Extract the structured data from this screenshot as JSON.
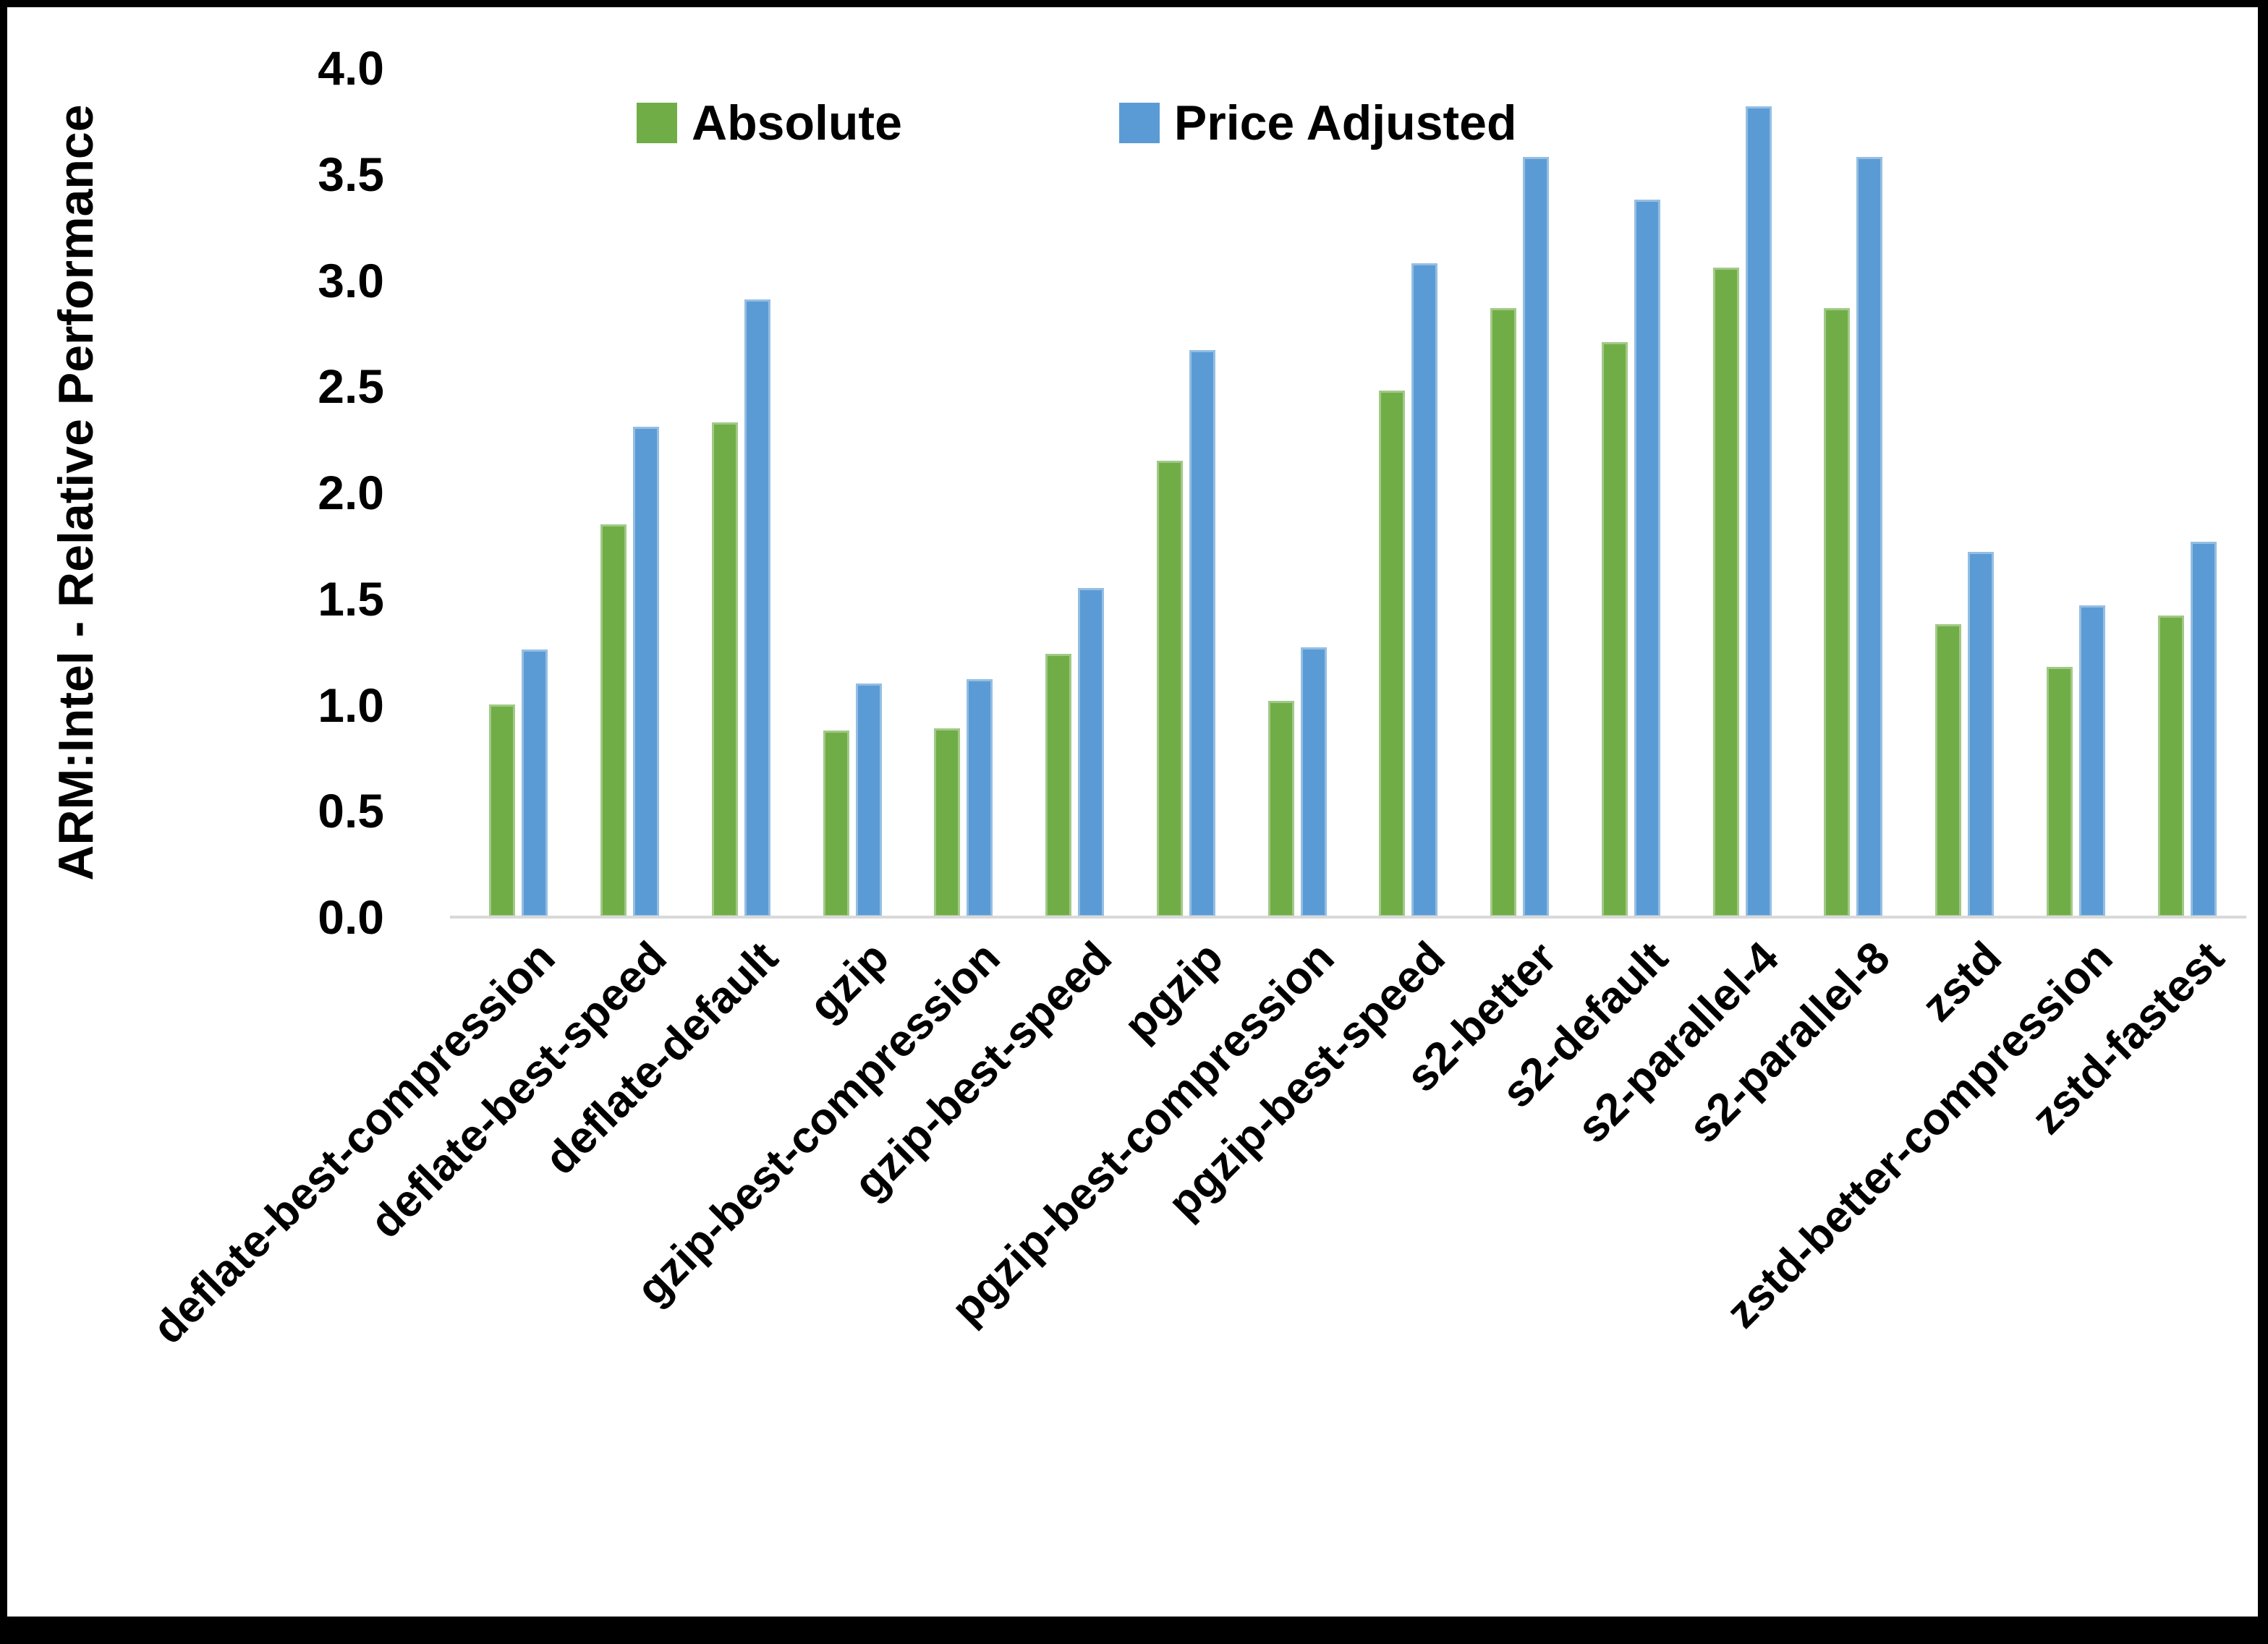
{
  "page": {
    "background": "#ffffff",
    "frame_color": "#000000"
  },
  "chart_data": {
    "type": "bar",
    "title": "",
    "ylabel": "ARM:Intel - Relative Performance",
    "xlabel": "",
    "ylim": [
      0.0,
      4.0
    ],
    "ytick_labels": [
      "0.0",
      "0.5",
      "1.0",
      "1.5",
      "2.0",
      "2.5",
      "3.0",
      "3.5",
      "4.0"
    ],
    "grid": false,
    "legend_position": "top-center",
    "axis_line_color": "#d9d9d9",
    "text_color": "#000000",
    "categories": [
      "deflate-best-compression",
      "deflate-best-speed",
      "deflate-default",
      "gzip",
      "gzip-best-compression",
      "gzip-best-speed",
      "pgzip",
      "pgzip-best-compression",
      "pgzip-best-speed",
      "s2-better",
      "s2-default",
      "s2-parallel-4",
      "s2-parallel-8",
      "zstd",
      "zstd-better-compression",
      "zstd-fastest"
    ],
    "series": [
      {
        "name": "Absolute",
        "color": "#70AD47",
        "values": [
          1.0,
          1.85,
          2.33,
          0.88,
          0.89,
          1.24,
          2.15,
          1.02,
          2.48,
          2.87,
          2.71,
          3.06,
          2.87,
          1.38,
          1.18,
          1.42
        ]
      },
      {
        "name": "Price Adjusted",
        "color": "#5B9BD5",
        "values": [
          1.26,
          2.31,
          2.91,
          1.1,
          1.12,
          1.55,
          2.67,
          1.27,
          3.08,
          3.58,
          3.38,
          3.82,
          3.58,
          1.72,
          1.47,
          1.77
        ]
      }
    ]
  }
}
